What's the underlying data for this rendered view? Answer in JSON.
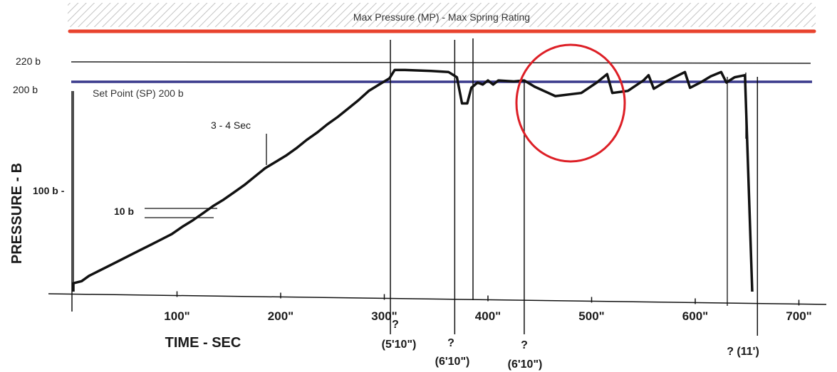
{
  "chart_data": {
    "type": "line",
    "title": "",
    "xlabel": "TIME - SEC",
    "ylabel": "PRESSURE - B",
    "x_ticks": [
      "100\"",
      "200\"",
      "300\"",
      "400\"",
      "500\"",
      "600\"",
      "700\""
    ],
    "x_tick_values": [
      100,
      200,
      300,
      400,
      500,
      600,
      700
    ],
    "y_ticks": [
      {
        "label": "220 b",
        "value": 220
      },
      {
        "label": "200 b",
        "value": 200
      },
      {
        "label": "100 b -",
        "value": 100
      }
    ],
    "xlim": [
      0,
      720
    ],
    "ylim": [
      0,
      230
    ],
    "grid": false,
    "legend": "none",
    "series": [
      {
        "color": "#111111",
        "points": [
          [
            0,
            0
          ],
          [
            0,
            8
          ],
          [
            8,
            10
          ],
          [
            15,
            15
          ],
          [
            25,
            20
          ],
          [
            35,
            25
          ],
          [
            45,
            30
          ],
          [
            55,
            35
          ],
          [
            65,
            40
          ],
          [
            75,
            45
          ],
          [
            85,
            50
          ],
          [
            95,
            55
          ],
          [
            105,
            62
          ],
          [
            115,
            68
          ],
          [
            125,
            75
          ],
          [
            135,
            82
          ],
          [
            145,
            88
          ],
          [
            155,
            95
          ],
          [
            165,
            102
          ],
          [
            175,
            110
          ],
          [
            185,
            118
          ],
          [
            195,
            124
          ],
          [
            205,
            130
          ],
          [
            215,
            137
          ],
          [
            225,
            145
          ],
          [
            235,
            152
          ],
          [
            245,
            160
          ],
          [
            255,
            167
          ],
          [
            265,
            175
          ],
          [
            275,
            183
          ],
          [
            285,
            192
          ],
          [
            295,
            198
          ],
          [
            305,
            204
          ],
          [
            310,
            212
          ],
          [
            320,
            212
          ],
          [
            345,
            211
          ],
          [
            362,
            210
          ],
          [
            370,
            205
          ],
          [
            375,
            180
          ],
          [
            380,
            180
          ],
          [
            384,
            195
          ],
          [
            390,
            200
          ],
          [
            395,
            198
          ],
          [
            400,
            202
          ],
          [
            405,
            198
          ],
          [
            410,
            202
          ],
          [
            425,
            201
          ],
          [
            435,
            202
          ],
          [
            445,
            196
          ],
          [
            465,
            187
          ],
          [
            490,
            190
          ],
          [
            505,
            200
          ],
          [
            515,
            208
          ],
          [
            520,
            190
          ],
          [
            535,
            192
          ],
          [
            550,
            202
          ],
          [
            555,
            207
          ],
          [
            560,
            194
          ],
          [
            570,
            200
          ],
          [
            580,
            205
          ],
          [
            590,
            210
          ],
          [
            595,
            195
          ],
          [
            605,
            200
          ],
          [
            615,
            206
          ],
          [
            625,
            210
          ],
          [
            630,
            200
          ],
          [
            638,
            205
          ],
          [
            648,
            207
          ],
          [
            655,
            0
          ]
        ]
      }
    ],
    "annotations": {
      "max_pressure": {
        "label": "Max Pressure (MP) - Max Spring Rating",
        "value": 235,
        "color": "#e8432e"
      },
      "set_point": {
        "label": "Set Point (SP) 200 b",
        "value": 200,
        "color": "#3a3a8c"
      },
      "step_height": {
        "label": "10 b"
      },
      "step_time": {
        "label": "3 - 4 Sec"
      },
      "highlight_color": "#dd1f26",
      "events": [
        {
          "value": 310,
          "label_top": "?",
          "label_bottom": "(5'10\")"
        },
        {
          "value": 370,
          "label_top": "?",
          "label_bottom": "(6'10\")"
        },
        {
          "value": 435,
          "label_top": "?",
          "label_bottom": "(6'10\")"
        },
        {
          "value": 660,
          "label_top": "",
          "label_bottom": "? (11')"
        }
      ]
    }
  }
}
